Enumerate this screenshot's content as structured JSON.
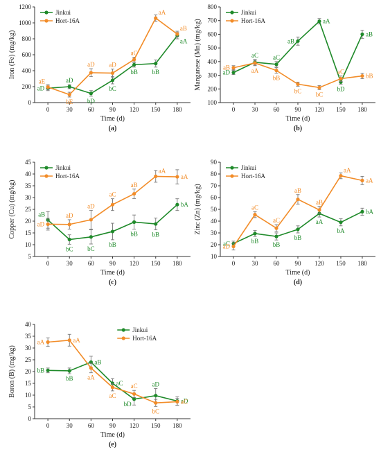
{
  "colors": {
    "jinkui": "#1f8a2a",
    "hort": "#f28c28",
    "axis": "#333333",
    "error": "#777777"
  },
  "chart_data": [
    {
      "type": "line",
      "panel_label": "(a)",
      "xlabel": "Time (d)",
      "ylabel": "Iron (Fe) (mg/kg)",
      "ylim": [
        0,
        1200
      ],
      "yticks": [
        0,
        200,
        400,
        600,
        800,
        1000,
        1200
      ],
      "x": [
        0,
        30,
        60,
        90,
        120,
        150,
        180
      ],
      "legend_position": "top-left",
      "series": [
        {
          "name": "Jinkui",
          "color_key": "jinkui",
          "values": [
            180,
            200,
            115,
            280,
            475,
            490,
            840
          ],
          "errors": [
            30,
            25,
            35,
            45,
            30,
            45,
            40
          ],
          "labels": [
            "aD",
            "aD",
            "bD",
            "bC",
            "bB",
            "bB",
            "aA"
          ],
          "label_pos": [
            "left",
            "above",
            "below",
            "below",
            "below",
            "below",
            "below-right"
          ]
        },
        {
          "name": "Hort-16A",
          "color_key": "hort",
          "values": [
            195,
            100,
            375,
            370,
            540,
            1060,
            860
          ],
          "errors": [
            30,
            30,
            50,
            50,
            30,
            40,
            35
          ],
          "labels": [
            "aE",
            "bE",
            "aD",
            "aD",
            "aC",
            "aA",
            "aB"
          ],
          "label_pos": [
            "above-left",
            "below",
            "above",
            "above",
            "above",
            "above-right",
            "above-right"
          ]
        }
      ]
    },
    {
      "type": "line",
      "panel_label": "(b)",
      "xlabel": "Time (d)",
      "ylabel": "Manganese (Mn) (mg/kg)",
      "ylim": [
        100,
        800
      ],
      "yticks": [
        100,
        200,
        300,
        400,
        500,
        600,
        700,
        800
      ],
      "x": [
        0,
        30,
        60,
        90,
        120,
        150,
        180
      ],
      "legend_position": "top-left",
      "series": [
        {
          "name": "Jinkui",
          "color_key": "jinkui",
          "values": [
            320,
            395,
            380,
            550,
            695,
            250,
            600
          ],
          "errors": [
            15,
            20,
            20,
            30,
            20,
            15,
            30
          ],
          "labels": [
            "aD",
            "aC",
            "aC",
            "aB",
            "aA",
            "bD",
            "aB"
          ],
          "label_pos": [
            "left",
            "above",
            "above",
            "left",
            "right",
            "below",
            "right"
          ]
        },
        {
          "name": "Hort-16A",
          "color_key": "hort",
          "values": [
            355,
            390,
            335,
            235,
            210,
            275,
            295
          ],
          "errors": [
            15,
            20,
            20,
            15,
            15,
            20,
            20
          ],
          "labels": [
            "aB",
            "aA",
            "bB",
            "bC",
            "bC",
            "aC",
            "bB"
          ],
          "label_pos": [
            "left",
            "below",
            "below",
            "below",
            "below",
            "above",
            "right"
          ]
        }
      ]
    },
    {
      "type": "line",
      "panel_label": "(c)",
      "xlabel": "Time (d)",
      "ylabel": "Copper (Cu) (mg/kg)",
      "ylim": [
        5,
        45
      ],
      "yticks": [
        5,
        10,
        15,
        20,
        25,
        30,
        35,
        40,
        45
      ],
      "x": [
        0,
        30,
        60,
        90,
        120,
        150,
        180
      ],
      "legend_position": "top-left",
      "series": [
        {
          "name": "Jinkui",
          "color_key": "jinkui",
          "values": [
            20.5,
            12.2,
            13.3,
            15.6,
            19.6,
            18.8,
            27.0
          ],
          "errors": [
            3.5,
            2.0,
            3.0,
            3.5,
            3.0,
            2.5,
            2.5
          ],
          "labels": [
            "aB",
            "bC",
            "bC",
            "bB",
            "bB",
            "bB",
            "bA"
          ],
          "label_pos": [
            "above-left",
            "below",
            "below",
            "below",
            "below",
            "below",
            "right"
          ]
        },
        {
          "name": "Hort-16A",
          "color_key": "hort",
          "values": [
            18.7,
            18.6,
            20.6,
            27.0,
            31.6,
            39.0,
            38.8
          ],
          "errors": [
            2.5,
            2.0,
            4.0,
            2.5,
            2.0,
            2.5,
            3.0
          ],
          "labels": [
            "aD",
            "aD",
            "aD",
            "aC",
            "aB",
            "aA",
            "aA"
          ],
          "label_pos": [
            "left",
            "above",
            "above",
            "above",
            "above",
            "above-right",
            "right"
          ]
        }
      ]
    },
    {
      "type": "line",
      "panel_label": "(d)",
      "xlabel": "Time (d)",
      "ylabel": "Zinc (Zn) (mg/kg)",
      "ylim": [
        10,
        90
      ],
      "yticks": [
        10,
        20,
        30,
        40,
        50,
        60,
        70,
        80,
        90
      ],
      "x": [
        0,
        30,
        60,
        90,
        120,
        150,
        180
      ],
      "legend_position": "top-left",
      "series": [
        {
          "name": "Jinkui",
          "color_key": "jinkui",
          "values": [
            21,
            29.5,
            27,
            33,
            46.5,
            39,
            48
          ],
          "errors": [
            2,
            2.5,
            3,
            3,
            3,
            3,
            3
          ],
          "labels": [
            "aC",
            "bB",
            "bB",
            "bB",
            "aA",
            "bA",
            "bA"
          ],
          "label_pos": [
            "left",
            "below",
            "below",
            "below",
            "below",
            "below",
            "right"
          ]
        },
        {
          "name": "Hort-16A",
          "color_key": "hort",
          "values": [
            18.5,
            45.5,
            34,
            58.5,
            49.5,
            78.5,
            74.5
          ],
          "errors": [
            3,
            2.5,
            3,
            4,
            3,
            2.5,
            3.5
          ],
          "labels": [
            "aD",
            "aC",
            "aC",
            "aB",
            "aB",
            "aA",
            "aA"
          ],
          "label_pos": [
            "left",
            "above",
            "above",
            "above",
            "above",
            "above-right",
            "right"
          ]
        }
      ]
    },
    {
      "type": "line",
      "panel_label": "(e)",
      "xlabel": "Time (d)",
      "ylabel": "Boron (B) (mg/kg)",
      "ylim": [
        0,
        40
      ],
      "yticks": [
        0,
        5,
        10,
        15,
        20,
        25,
        30,
        35,
        40
      ],
      "x": [
        0,
        30,
        60,
        90,
        120,
        150,
        180
      ],
      "legend_position": "top-right",
      "series": [
        {
          "name": "Jinkui",
          "color_key": "jinkui",
          "values": [
            20.5,
            20.3,
            24.0,
            15.0,
            8.3,
            9.8,
            7.5
          ],
          "errors": [
            1.0,
            1.2,
            2.5,
            2.0,
            2.5,
            3.0,
            1.8
          ],
          "labels": [
            "bB",
            "bB",
            "aB",
            "aC",
            "bD",
            "aD",
            "aD"
          ],
          "label_pos": [
            "left",
            "below",
            "right",
            "right",
            "below-left",
            "above",
            "right"
          ]
        },
        {
          "name": "Hort-16A",
          "color_key": "hort",
          "values": [
            32.5,
            33.3,
            21.5,
            13.3,
            10.5,
            6.7,
            7.2
          ],
          "errors": [
            1.8,
            2.5,
            2.0,
            1.5,
            1.5,
            1.5,
            1.5
          ],
          "labels": [
            "aA",
            "aA",
            "aA",
            "aC",
            "aC",
            "bC",
            "aC"
          ],
          "label_pos": [
            "left",
            "right",
            "below",
            "below",
            "above",
            "below",
            "right"
          ]
        }
      ]
    }
  ]
}
